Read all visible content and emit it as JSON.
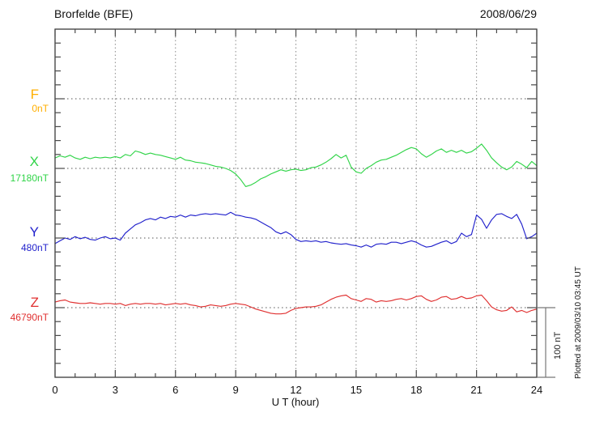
{
  "footer_note": "Plotted at 2009/03/10 03:45 UT",
  "chart_data": {
    "type": "line",
    "title": "Brorfelde (BFE)",
    "date": "2008/06/29",
    "xlabel": "U T (hour)",
    "x_range": [
      0,
      24
    ],
    "x_major_ticks": [
      0,
      3,
      6,
      9,
      12,
      15,
      18,
      21,
      24
    ],
    "x_minor_step_hours": 1,
    "grid": "dotted vertical lines every 3 h; dotted horizontal line at each component baseline",
    "legend_position": "left margin, one colored label per component",
    "y_scale_bar": {
      "label": "100 nT",
      "nT": 100
    },
    "sample_step_hours": 0.25,
    "series": [
      {
        "name": "F",
        "baseline_label": "0nT",
        "baseline_nT": 0,
        "color": "#FFAF00",
        "offsets_nT": []
      },
      {
        "name": "X",
        "baseline_label": "17180nT",
        "baseline_nT": 17180,
        "color": "#30D448",
        "offsets_nT": [
          15,
          18,
          16,
          19,
          15,
          13,
          16,
          14,
          16,
          15,
          16,
          15,
          17,
          15,
          20,
          18,
          25,
          23,
          20,
          22,
          20,
          19,
          17,
          15,
          13,
          16,
          12,
          11,
          9,
          8,
          7,
          5,
          3,
          2,
          0,
          -3,
          -8,
          -16,
          -26,
          -24,
          -20,
          -15,
          -12,
          -8,
          -5,
          -2,
          -4,
          -2,
          -1,
          -3,
          -2,
          1,
          2,
          5,
          9,
          14,
          20,
          15,
          19,
          2,
          -5,
          -7,
          0,
          4,
          9,
          12,
          13,
          16,
          19,
          23,
          27,
          30,
          28,
          21,
          16,
          20,
          25,
          28,
          23,
          26,
          23,
          26,
          22,
          24,
          29,
          35,
          26,
          15,
          8,
          2,
          -2,
          2,
          10,
          6,
          1,
          10,
          4
        ]
      },
      {
        "name": "Y",
        "baseline_label": "480nT",
        "baseline_nT": 480,
        "color": "#2222CC",
        "offsets_nT": [
          -8,
          -4,
          0,
          -2,
          2,
          -1,
          1,
          -2,
          -3,
          0,
          2,
          -1,
          0,
          -3,
          7,
          13,
          19,
          22,
          26,
          28,
          26,
          30,
          28,
          31,
          30,
          33,
          30,
          33,
          32,
          34,
          35,
          34,
          35,
          34,
          33,
          37,
          33,
          32,
          30,
          29,
          27,
          23,
          19,
          15,
          9,
          6,
          9,
          5,
          -2,
          -5,
          -4,
          -5,
          -4,
          -6,
          -5,
          -7,
          -8,
          -9,
          -8,
          -10,
          -11,
          -13,
          -10,
          -13,
          -9,
          -8,
          -9,
          -6,
          -6,
          -8,
          -6,
          -4,
          -6,
          -10,
          -13,
          -12,
          -9,
          -6,
          -4,
          -8,
          -5,
          7,
          2,
          5,
          33,
          27,
          14,
          26,
          34,
          35,
          31,
          28,
          34,
          20,
          -1,
          2,
          7
        ]
      },
      {
        "name": "Z",
        "baseline_label": "46790nT",
        "baseline_nT": 46790,
        "color": "#E03030",
        "offsets_nT": [
          8,
          10,
          11,
          8,
          7,
          6,
          6,
          7,
          6,
          5,
          6,
          6,
          5,
          6,
          3,
          5,
          6,
          5,
          6,
          6,
          5,
          6,
          4,
          5,
          6,
          5,
          6,
          4,
          3,
          1,
          2,
          4,
          3,
          2,
          3,
          5,
          6,
          5,
          4,
          1,
          -2,
          -4,
          -6,
          -8,
          -9,
          -9,
          -8,
          -4,
          -1,
          0,
          1,
          1,
          2,
          4,
          8,
          12,
          15,
          17,
          18,
          13,
          11,
          9,
          13,
          12,
          8,
          10,
          9,
          10,
          12,
          13,
          11,
          13,
          16,
          17,
          12,
          9,
          11,
          15,
          16,
          12,
          13,
          16,
          13,
          14,
          17,
          18,
          10,
          1,
          -3,
          -5,
          -4,
          1,
          -6,
          -4,
          -7,
          -4,
          -2
        ]
      }
    ]
  }
}
